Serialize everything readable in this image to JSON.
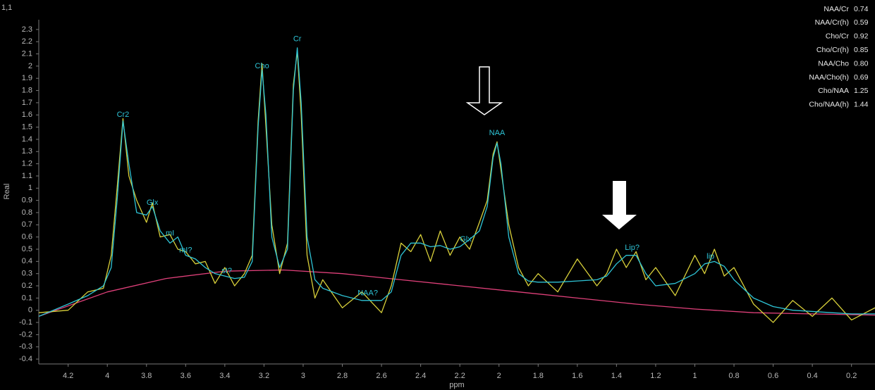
{
  "panel_label": "1,1",
  "chart_data": {
    "type": "line",
    "x_label": "ppm",
    "y_label": "Real",
    "xlim": [
      4.35,
      0.08
    ],
    "ylim": [
      -0.44,
      2.38
    ],
    "xticks": [
      4.2,
      4,
      3.8,
      3.6,
      3.4,
      3.2,
      3,
      2.8,
      2.6,
      2.4,
      2.2,
      2,
      1.8,
      1.6,
      1.4,
      1.2,
      1,
      0.8,
      0.6,
      0.4,
      0.2
    ],
    "yticks": [
      -0.4,
      -0.3,
      -0.2,
      -0.1,
      0,
      0.1,
      0.2,
      0.3,
      0.4,
      0.5,
      0.6,
      0.7,
      0.8,
      0.9,
      1,
      1.1,
      1.2,
      1.3,
      1.4,
      1.5,
      1.6,
      1.7,
      1.8,
      1.9,
      2,
      2.1,
      2.2,
      2.3
    ],
    "grid": false,
    "x": [
      4.35,
      4.2,
      4.1,
      4.02,
      3.98,
      3.95,
      3.92,
      3.89,
      3.85,
      3.8,
      3.77,
      3.73,
      3.68,
      3.64,
      3.6,
      3.55,
      3.5,
      3.45,
      3.4,
      3.35,
      3.3,
      3.26,
      3.23,
      3.21,
      3.19,
      3.16,
      3.12,
      3.08,
      3.05,
      3.03,
      3.01,
      2.98,
      2.94,
      2.9,
      2.8,
      2.7,
      2.6,
      2.55,
      2.5,
      2.45,
      2.4,
      2.35,
      2.3,
      2.25,
      2.2,
      2.15,
      2.1,
      2.06,
      2.03,
      2.01,
      1.99,
      1.95,
      1.9,
      1.85,
      1.8,
      1.7,
      1.6,
      1.5,
      1.45,
      1.4,
      1.35,
      1.3,
      1.25,
      1.2,
      1.1,
      1.0,
      0.95,
      0.9,
      0.85,
      0.8,
      0.7,
      0.6,
      0.5,
      0.4,
      0.3,
      0.2,
      0.08
    ],
    "series": [
      {
        "color": "#e0407a",
        "x": [
          4.35,
          4.0,
          3.7,
          3.4,
          3.1,
          2.8,
          2.5,
          2.2,
          1.9,
          1.6,
          1.3,
          1.0,
          0.7,
          0.4,
          0.08
        ],
        "values": [
          -0.05,
          0.15,
          0.26,
          0.32,
          0.33,
          0.3,
          0.25,
          0.2,
          0.15,
          0.1,
          0.05,
          0.01,
          -0.02,
          -0.03,
          -0.04
        ]
      },
      {
        "color": "#d8d03a",
        "values": [
          -0.02,
          0.0,
          0.15,
          0.18,
          0.45,
          1.0,
          1.57,
          1.1,
          0.9,
          0.72,
          0.88,
          0.6,
          0.62,
          0.5,
          0.48,
          0.38,
          0.4,
          0.22,
          0.35,
          0.2,
          0.3,
          0.45,
          1.55,
          2.02,
          1.5,
          0.7,
          0.3,
          0.55,
          1.85,
          2.12,
          1.6,
          0.45,
          0.1,
          0.25,
          0.02,
          0.15,
          -0.02,
          0.2,
          0.55,
          0.48,
          0.62,
          0.4,
          0.65,
          0.45,
          0.6,
          0.5,
          0.72,
          0.9,
          1.28,
          1.38,
          1.15,
          0.7,
          0.35,
          0.2,
          0.3,
          0.15,
          0.42,
          0.2,
          0.3,
          0.5,
          0.35,
          0.48,
          0.25,
          0.35,
          0.12,
          0.45,
          0.3,
          0.5,
          0.28,
          0.35,
          0.05,
          -0.1,
          0.08,
          -0.05,
          0.1,
          -0.08,
          0.02
        ]
      },
      {
        "color": "#2ec4d6",
        "values": [
          -0.05,
          0.05,
          0.12,
          0.2,
          0.35,
          0.9,
          1.55,
          1.2,
          0.8,
          0.78,
          0.85,
          0.65,
          0.55,
          0.6,
          0.45,
          0.42,
          0.35,
          0.3,
          0.28,
          0.26,
          0.27,
          0.4,
          1.5,
          1.97,
          1.6,
          0.6,
          0.35,
          0.5,
          1.8,
          2.15,
          1.7,
          0.6,
          0.25,
          0.18,
          0.12,
          0.08,
          0.08,
          0.15,
          0.45,
          0.55,
          0.55,
          0.52,
          0.53,
          0.5,
          0.52,
          0.58,
          0.65,
          0.85,
          1.25,
          1.37,
          1.2,
          0.6,
          0.3,
          0.24,
          0.23,
          0.23,
          0.24,
          0.25,
          0.28,
          0.38,
          0.45,
          0.45,
          0.3,
          0.2,
          0.22,
          0.3,
          0.38,
          0.4,
          0.36,
          0.25,
          0.1,
          0.03,
          0.0,
          -0.01,
          -0.02,
          -0.03,
          -0.03
        ]
      }
    ],
    "annotations": [
      {
        "text": "Cr2",
        "x": 3.92,
        "y": 1.6
      },
      {
        "text": "Glx",
        "x": 3.77,
        "y": 0.88
      },
      {
        "text": "mI",
        "x": 3.68,
        "y": 0.63
      },
      {
        "text": "mI?",
        "x": 3.6,
        "y": 0.49
      },
      {
        "text": "sI?",
        "x": 3.39,
        "y": 0.32
      },
      {
        "text": "Cho",
        "x": 3.21,
        "y": 2.0
      },
      {
        "text": "Cr",
        "x": 3.03,
        "y": 2.22
      },
      {
        "text": "NAA?",
        "x": 2.67,
        "y": 0.14
      },
      {
        "text": "Glx",
        "x": 2.17,
        "y": 0.58
      },
      {
        "text": "NAA",
        "x": 2.01,
        "y": 1.45
      },
      {
        "text": "Lip?",
        "x": 1.32,
        "y": 0.51
      },
      {
        "text": "lip",
        "x": 0.92,
        "y": 0.44
      }
    ]
  },
  "ratios": [
    {
      "name": "NAA/Cr",
      "value": "0.74"
    },
    {
      "name": "NAA/Cr(h)",
      "value": "0.59"
    },
    {
      "name": "Cho/Cr",
      "value": "0.92"
    },
    {
      "name": "Cho/Cr(h)",
      "value": "0.85"
    },
    {
      "name": "NAA/Cho",
      "value": "0.80"
    },
    {
      "name": "NAA/Cho(h)",
      "value": "0.69"
    },
    {
      "name": "Cho/NAA",
      "value": "1.25"
    },
    {
      "name": "Cho/NAA(h)",
      "value": "1.44"
    }
  ]
}
